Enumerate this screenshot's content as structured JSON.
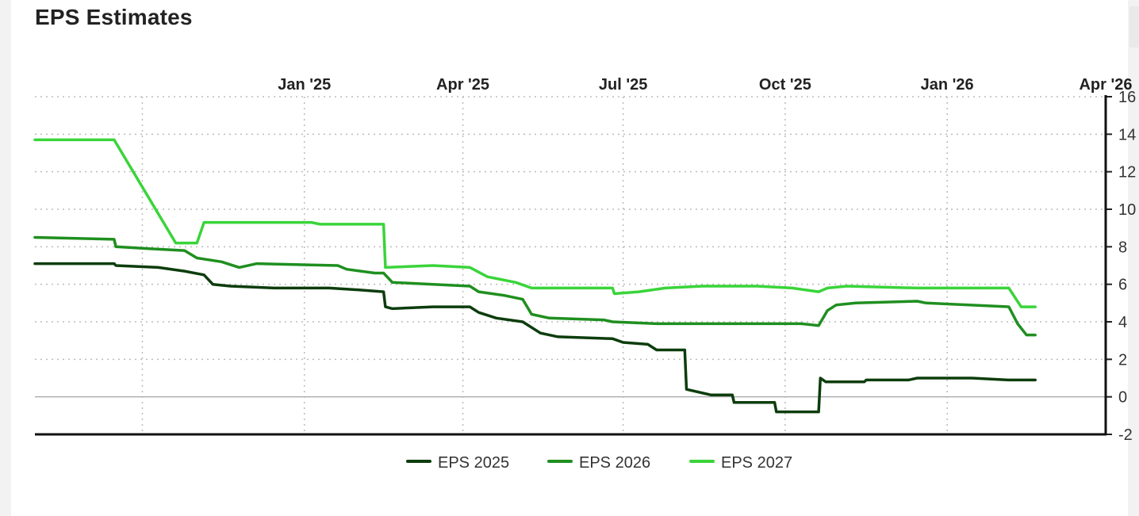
{
  "page": {
    "title": "EPS Estimates"
  },
  "chart_data": {
    "type": "line",
    "title": "EPS Estimates",
    "xlabel": "",
    "ylabel": "",
    "x_ticks": [
      "Jan '25",
      "Apr '25",
      "Jul '25",
      "Oct '25",
      "Jan '26",
      "Apr '26"
    ],
    "x_tick_dates": [
      "2025-01-01",
      "2025-04-01",
      "2025-07-01",
      "2025-10-01",
      "2026-01-01",
      "2026-04-01"
    ],
    "xlim": [
      "2024-08-01",
      "2026-04-01"
    ],
    "ylim": [
      -2,
      16
    ],
    "y_ticks": [
      -2,
      0,
      2,
      4,
      6,
      8,
      10,
      12,
      14,
      16
    ],
    "grid": true,
    "legend_position": "bottom",
    "series": [
      {
        "name": "EPS 2025",
        "color": "#0d3d0d",
        "points": [
          [
            "2024-08-01",
            7.1
          ],
          [
            "2024-09-15",
            7.1
          ],
          [
            "2024-09-16",
            7.0
          ],
          [
            "2024-10-10",
            6.9
          ],
          [
            "2024-10-25",
            6.7
          ],
          [
            "2024-11-05",
            6.5
          ],
          [
            "2024-11-10",
            6.0
          ],
          [
            "2024-11-20",
            5.9
          ],
          [
            "2024-12-15",
            5.8
          ],
          [
            "2025-01-15",
            5.8
          ],
          [
            "2025-02-01",
            5.7
          ],
          [
            "2025-02-15",
            5.6
          ],
          [
            "2025-02-16",
            4.8
          ],
          [
            "2025-02-20",
            4.7
          ],
          [
            "2025-03-15",
            4.8
          ],
          [
            "2025-04-05",
            4.8
          ],
          [
            "2025-04-10",
            4.5
          ],
          [
            "2025-04-20",
            4.2
          ],
          [
            "2025-05-05",
            4.0
          ],
          [
            "2025-05-15",
            3.4
          ],
          [
            "2025-05-25",
            3.2
          ],
          [
            "2025-06-25",
            3.1
          ],
          [
            "2025-07-01",
            2.9
          ],
          [
            "2025-07-15",
            2.8
          ],
          [
            "2025-07-20",
            2.5
          ],
          [
            "2025-08-05",
            2.5
          ],
          [
            "2025-08-06",
            0.4
          ],
          [
            "2025-08-20",
            0.1
          ],
          [
            "2025-09-01",
            0.1
          ],
          [
            "2025-09-02",
            -0.3
          ],
          [
            "2025-09-25",
            -0.3
          ],
          [
            "2025-09-26",
            -0.8
          ],
          [
            "2025-10-10",
            -0.8
          ],
          [
            "2025-10-20",
            -0.8
          ],
          [
            "2025-10-21",
            1.0
          ],
          [
            "2025-10-24",
            0.8
          ],
          [
            "2025-11-15",
            0.8
          ],
          [
            "2025-11-16",
            0.9
          ],
          [
            "2025-12-10",
            0.9
          ],
          [
            "2025-12-15",
            1.0
          ],
          [
            "2026-01-15",
            1.0
          ],
          [
            "2026-02-05",
            0.9
          ],
          [
            "2026-02-20",
            0.9
          ]
        ]
      },
      {
        "name": "EPS 2026",
        "color": "#1f8f1f",
        "points": [
          [
            "2024-08-01",
            8.5
          ],
          [
            "2024-09-15",
            8.4
          ],
          [
            "2024-09-16",
            8.0
          ],
          [
            "2024-10-05",
            7.9
          ],
          [
            "2024-10-25",
            7.8
          ],
          [
            "2024-11-01",
            7.4
          ],
          [
            "2024-11-15",
            7.2
          ],
          [
            "2024-11-25",
            6.9
          ],
          [
            "2024-12-05",
            7.1
          ],
          [
            "2025-01-20",
            7.0
          ],
          [
            "2025-01-25",
            6.8
          ],
          [
            "2025-02-10",
            6.6
          ],
          [
            "2025-02-15",
            6.6
          ],
          [
            "2025-02-20",
            6.1
          ],
          [
            "2025-03-15",
            6.0
          ],
          [
            "2025-04-05",
            5.9
          ],
          [
            "2025-04-10",
            5.6
          ],
          [
            "2025-04-25",
            5.4
          ],
          [
            "2025-05-05",
            5.2
          ],
          [
            "2025-05-10",
            4.4
          ],
          [
            "2025-05-20",
            4.2
          ],
          [
            "2025-06-20",
            4.1
          ],
          [
            "2025-06-25",
            4.0
          ],
          [
            "2025-07-20",
            3.9
          ],
          [
            "2025-10-10",
            3.9
          ],
          [
            "2025-10-20",
            3.8
          ],
          [
            "2025-10-25",
            4.6
          ],
          [
            "2025-10-30",
            4.9
          ],
          [
            "2025-11-10",
            5.0
          ],
          [
            "2025-12-15",
            5.1
          ],
          [
            "2025-12-20",
            5.0
          ],
          [
            "2026-02-05",
            4.8
          ],
          [
            "2026-02-10",
            3.9
          ],
          [
            "2026-02-15",
            3.3
          ],
          [
            "2026-02-20",
            3.3
          ]
        ]
      },
      {
        "name": "EPS 2027",
        "color": "#3ad43a",
        "points": [
          [
            "2024-08-01",
            13.7
          ],
          [
            "2024-09-15",
            13.7
          ],
          [
            "2024-10-20",
            8.2
          ],
          [
            "2024-11-01",
            8.2
          ],
          [
            "2024-11-05",
            9.3
          ],
          [
            "2025-01-05",
            9.3
          ],
          [
            "2025-01-10",
            9.2
          ],
          [
            "2025-02-15",
            9.2
          ],
          [
            "2025-02-16",
            6.9
          ],
          [
            "2025-03-15",
            7.0
          ],
          [
            "2025-04-05",
            6.9
          ],
          [
            "2025-04-15",
            6.4
          ],
          [
            "2025-05-01",
            6.1
          ],
          [
            "2025-05-10",
            5.8
          ],
          [
            "2025-06-25",
            5.8
          ],
          [
            "2025-06-26",
            5.5
          ],
          [
            "2025-07-10",
            5.6
          ],
          [
            "2025-07-25",
            5.8
          ],
          [
            "2025-08-15",
            5.9
          ],
          [
            "2025-09-15",
            5.9
          ],
          [
            "2025-10-05",
            5.8
          ],
          [
            "2025-10-20",
            5.6
          ],
          [
            "2025-10-25",
            5.8
          ],
          [
            "2025-11-05",
            5.9
          ],
          [
            "2025-12-15",
            5.8
          ],
          [
            "2026-02-05",
            5.8
          ],
          [
            "2026-02-12",
            4.8
          ],
          [
            "2026-02-20",
            4.8
          ]
        ]
      }
    ]
  }
}
